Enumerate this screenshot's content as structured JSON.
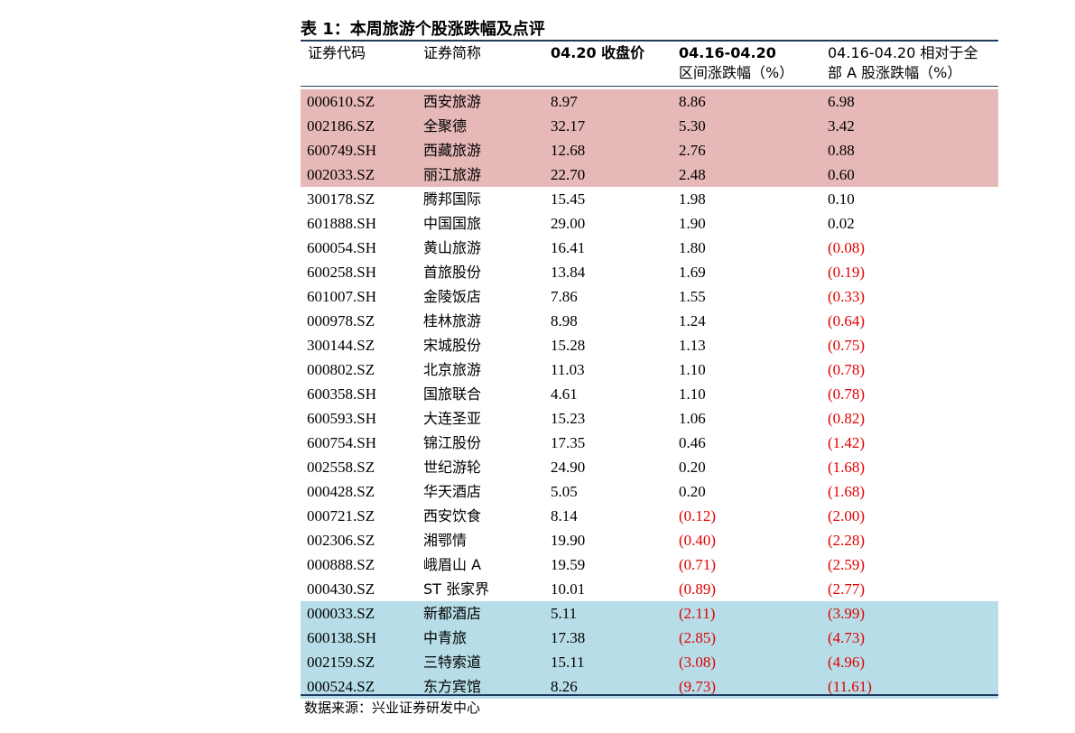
{
  "title": "表 1：本周旅游个股涨跌幅及点评",
  "headers": {
    "code": "证券代码",
    "name": "证券简称",
    "price": "04.20 收盘价",
    "chg_line1": "04.16-04.20",
    "chg_line2": "区间涨跌幅（%）",
    "rel_line1": "04.16-04.20 相对于全",
    "rel_line2": "部 A 股涨跌幅（%）"
  },
  "colors": {
    "top_highlight": "#e6b8b7",
    "bottom_highlight": "#b7dee8",
    "negative_text": "#e00000",
    "rule": "#1f3a5f"
  },
  "rows": [
    {
      "code": "000610.SZ",
      "name": "西安旅游",
      "price": "8.97",
      "chg": "8.86",
      "rel": "6.98",
      "highlight": "red"
    },
    {
      "code": "002186.SZ",
      "name": "全聚德",
      "price": "32.17",
      "chg": "5.30",
      "rel": "3.42",
      "highlight": "red"
    },
    {
      "code": "600749.SH",
      "name": "西藏旅游",
      "price": "12.68",
      "chg": "2.76",
      "rel": "0.88",
      "highlight": "red"
    },
    {
      "code": "002033.SZ",
      "name": "丽江旅游",
      "price": "22.70",
      "chg": "2.48",
      "rel": "0.60",
      "highlight": "red"
    },
    {
      "code": "300178.SZ",
      "name": "腾邦国际",
      "price": "15.45",
      "chg": "1.98",
      "rel": "0.10",
      "highlight": ""
    },
    {
      "code": "601888.SH",
      "name": "中国国旅",
      "price": "29.00",
      "chg": "1.90",
      "rel": "0.02",
      "highlight": ""
    },
    {
      "code": "600054.SH",
      "name": "黄山旅游",
      "price": "16.41",
      "chg": "1.80",
      "rel": "(0.08)",
      "highlight": ""
    },
    {
      "code": "600258.SH",
      "name": "首旅股份",
      "price": "13.84",
      "chg": "1.69",
      "rel": "(0.19)",
      "highlight": ""
    },
    {
      "code": "601007.SH",
      "name": "金陵饭店",
      "price": "7.86",
      "chg": "1.55",
      "rel": "(0.33)",
      "highlight": ""
    },
    {
      "code": "000978.SZ",
      "name": "桂林旅游",
      "price": "8.98",
      "chg": "1.24",
      "rel": "(0.64)",
      "highlight": ""
    },
    {
      "code": "300144.SZ",
      "name": "宋城股份",
      "price": "15.28",
      "chg": "1.13",
      "rel": "(0.75)",
      "highlight": ""
    },
    {
      "code": "000802.SZ",
      "name": "北京旅游",
      "price": "11.03",
      "chg": "1.10",
      "rel": "(0.78)",
      "highlight": ""
    },
    {
      "code": "600358.SH",
      "name": "国旅联合",
      "price": "4.61",
      "chg": "1.10",
      "rel": "(0.78)",
      "highlight": ""
    },
    {
      "code": "600593.SH",
      "name": "大连圣亚",
      "price": "15.23",
      "chg": "1.06",
      "rel": "(0.82)",
      "highlight": ""
    },
    {
      "code": "600754.SH",
      "name": "锦江股份",
      "price": "17.35",
      "chg": "0.46",
      "rel": "(1.42)",
      "highlight": ""
    },
    {
      "code": "002558.SZ",
      "name": "世纪游轮",
      "price": "24.90",
      "chg": "0.20",
      "rel": "(1.68)",
      "highlight": ""
    },
    {
      "code": "000428.SZ",
      "name": "华天酒店",
      "price": "5.05",
      "chg": "0.20",
      "rel": "(1.68)",
      "highlight": ""
    },
    {
      "code": "000721.SZ",
      "name": "西安饮食",
      "price": "8.14",
      "chg": "(0.12)",
      "rel": "(2.00)",
      "highlight": ""
    },
    {
      "code": "002306.SZ",
      "name": "湘鄂情",
      "price": "19.90",
      "chg": "(0.40)",
      "rel": "(2.28)",
      "highlight": ""
    },
    {
      "code": "000888.SZ",
      "name": "峨眉山 A",
      "price": "19.59",
      "chg": "(0.71)",
      "rel": "(2.59)",
      "highlight": ""
    },
    {
      "code": "000430.SZ",
      "name": "ST 张家界",
      "price": "10.01",
      "chg": "(0.89)",
      "rel": "(2.77)",
      "highlight": ""
    },
    {
      "code": "000033.SZ",
      "name": "新都酒店",
      "price": "5.11",
      "chg": "(2.11)",
      "rel": "(3.99)",
      "highlight": "blue"
    },
    {
      "code": "600138.SH",
      "name": "中青旅",
      "price": "17.38",
      "chg": "(2.85)",
      "rel": "(4.73)",
      "highlight": "blue"
    },
    {
      "code": "002159.SZ",
      "name": "三特索道",
      "price": "15.11",
      "chg": "(3.08)",
      "rel": "(4.96)",
      "highlight": "blue"
    },
    {
      "code": "000524.SZ",
      "name": "东方宾馆",
      "price": "8.26",
      "chg": "(9.73)",
      "rel": "(11.61)",
      "highlight": "blue"
    }
  ],
  "source": "数据来源：兴业证券研发中心"
}
